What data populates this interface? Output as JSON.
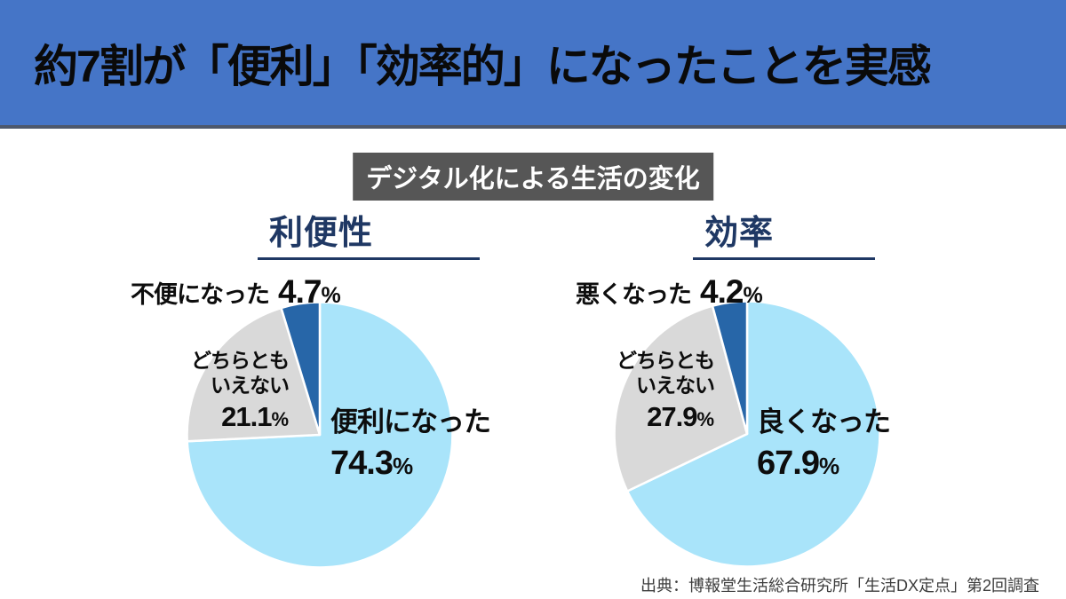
{
  "header": {
    "title": "約7割が「便利」「効率的」になったことを実感",
    "bg_color": "#4575C7"
  },
  "subtitle_badge": {
    "text": "デジタル化による生活の変化",
    "bg_color": "#565656",
    "text_color": "#FFFFFF"
  },
  "source_note": "出典：博報堂生活総合研究所「生活DX定点」第2回調査",
  "colors": {
    "positive_slice": "#A9E4FA",
    "neutral_slice": "#D9D9D9",
    "negative_slice": "#2766A8",
    "chart_title": "#1F3864",
    "label_text": "#0D0D0D"
  },
  "chart_data": [
    {
      "type": "pie",
      "title": "利便性",
      "unit": "%",
      "start_angle": "12-oclock",
      "direction": "clockwise",
      "legend": "none",
      "labels_on_chart": true,
      "slices": [
        {
          "label": "便利になった",
          "value": 74.3,
          "color": "#A9E4FA",
          "label_position": "inside-right"
        },
        {
          "label": "どちらともいえない",
          "label_lines": [
            "どちらとも",
            "いえない"
          ],
          "value": 21.1,
          "color": "#D9D9D9",
          "label_position": "inside-left"
        },
        {
          "label": "不便になった",
          "value": 4.7,
          "color": "#2766A8",
          "label_position": "outside-top"
        }
      ]
    },
    {
      "type": "pie",
      "title": "効率",
      "unit": "%",
      "start_angle": "12-oclock",
      "direction": "clockwise",
      "legend": "none",
      "labels_on_chart": true,
      "slices": [
        {
          "label": "良くなった",
          "value": 67.9,
          "color": "#A9E4FA",
          "label_position": "inside-right"
        },
        {
          "label": "どちらともいえない",
          "label_lines": [
            "どちらとも",
            "いえない"
          ],
          "value": 27.9,
          "color": "#D9D9D9",
          "label_position": "inside-left"
        },
        {
          "label": "悪くなった",
          "value": 4.2,
          "color": "#2766A8",
          "label_position": "outside-top"
        }
      ]
    }
  ]
}
